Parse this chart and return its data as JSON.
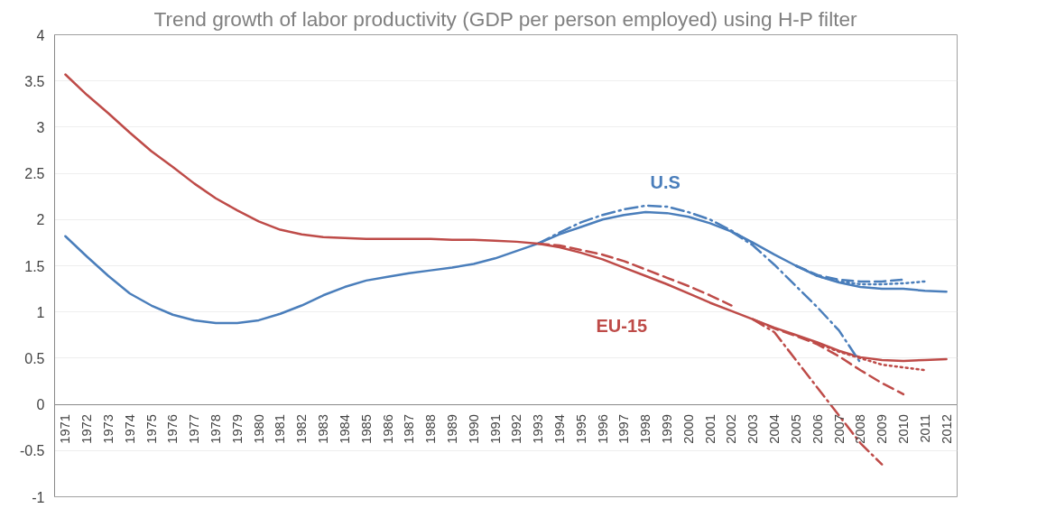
{
  "chart_data": {
    "type": "line",
    "title": "Trend growth of labor productivity (GDP per person employed) using H-P filter",
    "categories": [
      "1971",
      "1972",
      "1973",
      "1974",
      "1975",
      "1976",
      "1977",
      "1978",
      "1979",
      "1980",
      "1981",
      "1982",
      "1983",
      "1984",
      "1985",
      "1986",
      "1987",
      "1988",
      "1989",
      "1990",
      "1991",
      "1992",
      "1993",
      "1994",
      "1995",
      "1996",
      "1997",
      "1998",
      "1999",
      "2000",
      "2001",
      "2002",
      "2003",
      "2004",
      "2005",
      "2006",
      "2007",
      "2008",
      "2009",
      "2010",
      "2011",
      "2012"
    ],
    "ylim": [
      -1,
      4
    ],
    "yticks": [
      -1,
      -0.5,
      0,
      0.5,
      1,
      1.5,
      2,
      2.5,
      3,
      3.5,
      4
    ],
    "grid": "y",
    "series": [
      {
        "color": "#4a7ebb",
        "line_style": "solid",
        "values": [
          1.82,
          1.6,
          1.39,
          1.2,
          1.07,
          0.97,
          0.91,
          0.88,
          0.88,
          0.91,
          0.98,
          1.07,
          1.18,
          1.27,
          1.34,
          1.38,
          1.42,
          1.45,
          1.48,
          1.52,
          1.58,
          1.66,
          1.74,
          1.84,
          1.92,
          2.0,
          2.05,
          2.08,
          2.07,
          2.03,
          1.96,
          1.87,
          1.75,
          1.62,
          1.5,
          1.39,
          1.32,
          1.27,
          1.25,
          1.25,
          1.23,
          1.22
        ]
      },
      {
        "color": "#be4b48",
        "line_style": "solid",
        "values": [
          3.57,
          3.35,
          3.15,
          2.94,
          2.74,
          2.57,
          2.39,
          2.23,
          2.1,
          1.98,
          1.89,
          1.84,
          1.81,
          1.8,
          1.79,
          1.79,
          1.79,
          1.79,
          1.78,
          1.78,
          1.77,
          1.76,
          1.74,
          1.7,
          1.64,
          1.57,
          1.48,
          1.39,
          1.3,
          1.2,
          1.1,
          1.01,
          0.92,
          0.83,
          0.75,
          0.67,
          0.58,
          0.51,
          0.48,
          0.47,
          0.48,
          0.49
        ]
      },
      {
        "color": "#4a7ebb",
        "line_style": "dashdot",
        "values": [
          null,
          null,
          null,
          null,
          null,
          null,
          null,
          null,
          null,
          null,
          null,
          null,
          null,
          null,
          null,
          null,
          null,
          null,
          null,
          null,
          null,
          null,
          1.74,
          1.86,
          1.97,
          2.05,
          2.11,
          2.15,
          2.14,
          2.08,
          2.0,
          1.88,
          1.74,
          null,
          null,
          null,
          null,
          null,
          null,
          null,
          null,
          null
        ]
      },
      {
        "color": "#4a7ebb",
        "line_style": "dashdot",
        "values": [
          null,
          null,
          null,
          null,
          null,
          null,
          null,
          null,
          null,
          null,
          null,
          null,
          null,
          null,
          null,
          null,
          null,
          null,
          null,
          null,
          null,
          null,
          null,
          null,
          null,
          null,
          null,
          null,
          null,
          null,
          null,
          1.87,
          1.72,
          1.51,
          1.28,
          1.05,
          0.8,
          0.45,
          null,
          null,
          null,
          null
        ]
      },
      {
        "color": "#4a7ebb",
        "line_style": "dashed",
        "values": [
          null,
          null,
          null,
          null,
          null,
          null,
          null,
          null,
          null,
          null,
          null,
          null,
          null,
          null,
          null,
          null,
          null,
          null,
          null,
          null,
          null,
          null,
          null,
          null,
          null,
          null,
          null,
          null,
          null,
          null,
          null,
          null,
          null,
          null,
          1.5,
          1.4,
          1.35,
          1.33,
          1.33,
          1.35,
          null,
          null
        ]
      },
      {
        "color": "#4a7ebb",
        "line_style": "dotted",
        "values": [
          null,
          null,
          null,
          null,
          null,
          null,
          null,
          null,
          null,
          null,
          null,
          null,
          null,
          null,
          null,
          null,
          null,
          null,
          null,
          null,
          null,
          null,
          null,
          null,
          null,
          null,
          null,
          null,
          null,
          null,
          null,
          null,
          null,
          null,
          1.5,
          1.39,
          1.33,
          1.3,
          1.3,
          1.31,
          1.33,
          null
        ]
      },
      {
        "color": "#be4b48",
        "line_style": "dashed",
        "values": [
          null,
          null,
          null,
          null,
          null,
          null,
          null,
          null,
          null,
          null,
          null,
          null,
          null,
          null,
          null,
          null,
          null,
          null,
          null,
          null,
          null,
          null,
          1.74,
          1.72,
          1.67,
          1.62,
          1.55,
          1.46,
          1.37,
          1.28,
          1.18,
          1.07,
          null,
          null,
          null,
          null,
          null,
          null,
          null,
          null,
          null,
          null
        ]
      },
      {
        "color": "#be4b48",
        "line_style": "dashdot",
        "values": [
          null,
          null,
          null,
          null,
          null,
          null,
          null,
          null,
          null,
          null,
          null,
          null,
          null,
          null,
          null,
          null,
          null,
          null,
          null,
          null,
          null,
          null,
          null,
          null,
          null,
          null,
          null,
          null,
          null,
          null,
          null,
          null,
          0.92,
          0.78,
          0.48,
          0.18,
          -0.12,
          -0.42,
          -0.65,
          null,
          null,
          null
        ]
      },
      {
        "color": "#be4b48",
        "line_style": "dashed",
        "values": [
          null,
          null,
          null,
          null,
          null,
          null,
          null,
          null,
          null,
          null,
          null,
          null,
          null,
          null,
          null,
          null,
          null,
          null,
          null,
          null,
          null,
          null,
          null,
          null,
          null,
          null,
          null,
          null,
          null,
          null,
          null,
          null,
          0.92,
          0.82,
          0.74,
          0.65,
          0.52,
          0.37,
          0.23,
          0.11,
          null,
          null
        ]
      },
      {
        "color": "#be4b48",
        "line_style": "dotted",
        "values": [
          null,
          null,
          null,
          null,
          null,
          null,
          null,
          null,
          null,
          null,
          null,
          null,
          null,
          null,
          null,
          null,
          null,
          null,
          null,
          null,
          null,
          null,
          null,
          null,
          null,
          null,
          null,
          null,
          null,
          null,
          null,
          null,
          null,
          null,
          null,
          0.66,
          0.57,
          0.5,
          0.43,
          0.4,
          0.37,
          null
        ]
      }
    ],
    "annotations": [
      "U.S",
      "EU-15"
    ]
  }
}
